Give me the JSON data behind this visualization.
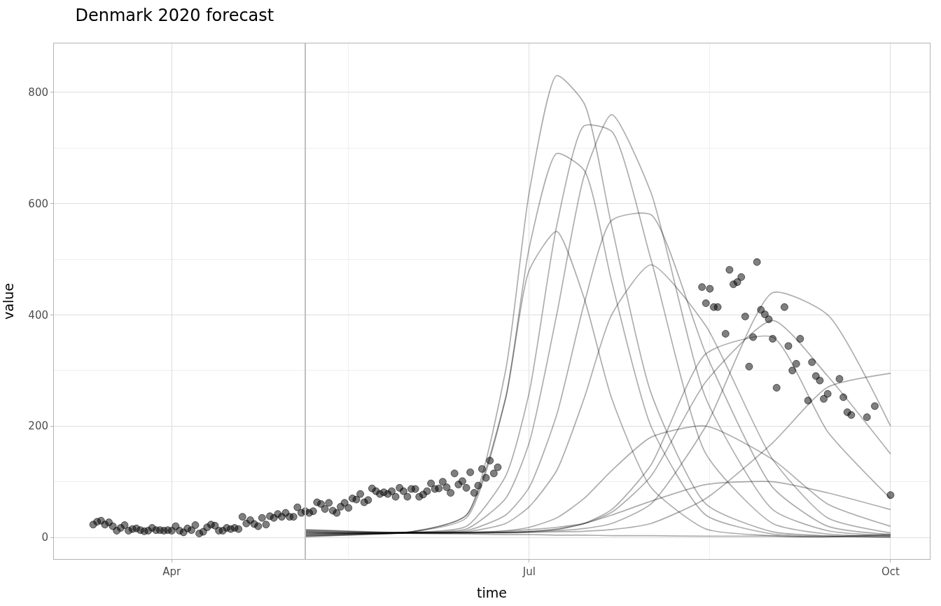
{
  "chart_data": {
    "type": "line",
    "title": "Denmark 2020 forecast",
    "xlabel": "time",
    "ylabel": "value",
    "xlim": [
      "2020-03-02",
      "2020-10-11"
    ],
    "xticks": [
      {
        "value": "2020-04-01",
        "label": "Apr"
      },
      {
        "value": "2020-07-01",
        "label": "Jul"
      },
      {
        "value": "2020-10-01",
        "label": "Oct"
      }
    ],
    "ylim": [
      -39,
      888
    ],
    "yticks": [
      0,
      200,
      400,
      600,
      800
    ],
    "grid": true,
    "legend": false,
    "ref_lines": [
      {
        "axis": "x",
        "value": "2020-05-05",
        "color": "#bfbfbf"
      }
    ],
    "series": [
      {
        "type": "scatter",
        "marker": "circle",
        "color": "#000000",
        "x": [
          "2020-03-12",
          "2020-03-13",
          "2020-03-14",
          "2020-03-15",
          "2020-03-16",
          "2020-03-17",
          "2020-03-18",
          "2020-03-19",
          "2020-03-20",
          "2020-03-21",
          "2020-03-22",
          "2020-03-23",
          "2020-03-24",
          "2020-03-25",
          "2020-03-26",
          "2020-03-27",
          "2020-03-28",
          "2020-03-29",
          "2020-03-30",
          "2020-03-31",
          "2020-04-01",
          "2020-04-02",
          "2020-04-03",
          "2020-04-04",
          "2020-04-05",
          "2020-04-06",
          "2020-04-07",
          "2020-04-08",
          "2020-04-09",
          "2020-04-10",
          "2020-04-11",
          "2020-04-12",
          "2020-04-13",
          "2020-04-14",
          "2020-04-15",
          "2020-04-16",
          "2020-04-17",
          "2020-04-18",
          "2020-04-19",
          "2020-04-20",
          "2020-04-21",
          "2020-04-22",
          "2020-04-23",
          "2020-04-24",
          "2020-04-25",
          "2020-04-26",
          "2020-04-27",
          "2020-04-28",
          "2020-04-29",
          "2020-04-30",
          "2020-05-01",
          "2020-05-02",
          "2020-05-03",
          "2020-05-04",
          "2020-05-05",
          "2020-05-06",
          "2020-05-07",
          "2020-05-08",
          "2020-05-09",
          "2020-05-10",
          "2020-05-11",
          "2020-05-12",
          "2020-05-13",
          "2020-05-14",
          "2020-05-15",
          "2020-05-16",
          "2020-05-17",
          "2020-05-18",
          "2020-05-19",
          "2020-05-20",
          "2020-05-21",
          "2020-05-22",
          "2020-05-23",
          "2020-05-24",
          "2020-05-25",
          "2020-05-26",
          "2020-05-27",
          "2020-05-28",
          "2020-05-29",
          "2020-05-30",
          "2020-05-31",
          "2020-06-01",
          "2020-06-02",
          "2020-06-03",
          "2020-06-04",
          "2020-06-05",
          "2020-06-06",
          "2020-06-07",
          "2020-06-08",
          "2020-06-09",
          "2020-06-10",
          "2020-06-11",
          "2020-06-12",
          "2020-06-13",
          "2020-06-14",
          "2020-06-15",
          "2020-06-16",
          "2020-06-17",
          "2020-06-18",
          "2020-06-19",
          "2020-06-20",
          "2020-06-21",
          "2020-06-22",
          "2020-06-23",
          "2020-08-14",
          "2020-08-15",
          "2020-08-16",
          "2020-08-17",
          "2020-08-18",
          "2020-08-20",
          "2020-08-21",
          "2020-08-22",
          "2020-08-23",
          "2020-08-24",
          "2020-08-25",
          "2020-08-26",
          "2020-08-27",
          "2020-08-28",
          "2020-08-29",
          "2020-08-30",
          "2020-08-31",
          "2020-09-01",
          "2020-09-02",
          "2020-09-04",
          "2020-09-05",
          "2020-09-06",
          "2020-09-07",
          "2020-09-08",
          "2020-09-10",
          "2020-09-11",
          "2020-09-12",
          "2020-09-13",
          "2020-09-14",
          "2020-09-15",
          "2020-09-18",
          "2020-09-19",
          "2020-09-20",
          "2020-09-21",
          "2020-09-25",
          "2020-09-27",
          "2020-10-01"
        ],
        "values": [
          23,
          28,
          30,
          23,
          27,
          20,
          12,
          17,
          22,
          12,
          15,
          16,
          13,
          11,
          12,
          17,
          13,
          13,
          12,
          13,
          12,
          20,
          12,
          9,
          16,
          13,
          22,
          7,
          10,
          18,
          23,
          21,
          12,
          12,
          17,
          15,
          17,
          15,
          37,
          25,
          31,
          24,
          20,
          35,
          23,
          38,
          35,
          42,
          37,
          44,
          37,
          37,
          54,
          44,
          47,
          44,
          47,
          63,
          60,
          51,
          62,
          48,
          44,
          55,
          62,
          53,
          70,
          68,
          78,
          63,
          67,
          88,
          83,
          78,
          81,
          78,
          83,
          73,
          89,
          83,
          73,
          87,
          87,
          73,
          77,
          83,
          97,
          87,
          88,
          100,
          90,
          80,
          115,
          95,
          101,
          89,
          117,
          80,
          93,
          123,
          107,
          138,
          115,
          126,
          450,
          421,
          447,
          414,
          414,
          366,
          481,
          455,
          459,
          468,
          397,
          307,
          360,
          495,
          409,
          401,
          392,
          357,
          269,
          414,
          344,
          300,
          312,
          357,
          246,
          315,
          290,
          282,
          249,
          258,
          285,
          252,
          225,
          220,
          216,
          236,
          76
        ]
      },
      {
        "color": "#000000",
        "x": [
          "2020-05-05",
          "2020-06-01",
          "2020-06-15",
          "2020-06-25",
          "2020-07-01",
          "2020-07-08",
          "2020-07-15",
          "2020-07-22",
          "2020-08-01",
          "2020-08-15",
          "2020-09-01",
          "2020-09-15",
          "2020-10-01"
        ],
        "values": [
          9,
          10,
          40,
          300,
          620,
          830,
          780,
          560,
          260,
          60,
          10,
          3,
          1
        ]
      },
      {
        "color": "#000000",
        "x": [
          "2020-05-05",
          "2020-06-01",
          "2020-06-15",
          "2020-06-25",
          "2020-07-01",
          "2020-07-08",
          "2020-07-15",
          "2020-07-22",
          "2020-08-01",
          "2020-08-15",
          "2020-09-01",
          "2020-09-15",
          "2020-10-01"
        ],
        "values": [
          8,
          9,
          20,
          110,
          260,
          560,
          740,
          730,
          500,
          150,
          25,
          6,
          2
        ]
      },
      {
        "color": "#000000",
        "x": [
          "2020-05-05",
          "2020-06-01",
          "2020-06-15",
          "2020-06-25",
          "2020-07-01",
          "2020-07-08",
          "2020-07-15",
          "2020-07-22",
          "2020-08-01",
          "2020-08-15",
          "2020-09-01",
          "2020-09-15",
          "2020-10-01"
        ],
        "values": [
          7,
          9,
          15,
          70,
          170,
          400,
          650,
          760,
          620,
          250,
          50,
          12,
          3
        ]
      },
      {
        "color": "#000000",
        "x": [
          "2020-05-05",
          "2020-06-01",
          "2020-06-15",
          "2020-06-25",
          "2020-07-01",
          "2020-07-08",
          "2020-07-15",
          "2020-07-22",
          "2020-08-01",
          "2020-08-15",
          "2020-09-01",
          "2020-09-15",
          "2020-10-01"
        ],
        "values": [
          10,
          10,
          35,
          250,
          520,
          690,
          660,
          460,
          200,
          40,
          6,
          2,
          0
        ]
      },
      {
        "color": "#000000",
        "x": [
          "2020-05-05",
          "2020-06-01",
          "2020-06-15",
          "2020-06-25",
          "2020-07-01",
          "2020-07-08",
          "2020-07-15",
          "2020-07-22",
          "2020-08-01",
          "2020-08-15",
          "2020-09-01",
          "2020-09-15",
          "2020-10-01"
        ],
        "values": [
          6,
          9,
          12,
          40,
          90,
          220,
          420,
          570,
          580,
          330,
          90,
          20,
          5
        ]
      },
      {
        "color": "#000000",
        "x": [
          "2020-05-05",
          "2020-06-01",
          "2020-06-15",
          "2020-06-25",
          "2020-07-01",
          "2020-07-08",
          "2020-07-15",
          "2020-07-22",
          "2020-08-01",
          "2020-08-15",
          "2020-09-01",
          "2020-09-15",
          "2020-10-01"
        ],
        "values": [
          5,
          8,
          8,
          9,
          10,
          12,
          16,
          25,
          60,
          200,
          440,
          400,
          200
        ]
      },
      {
        "color": "#000000",
        "x": [
          "2020-05-05",
          "2020-06-01",
          "2020-06-15",
          "2020-06-25",
          "2020-07-01",
          "2020-07-08",
          "2020-07-15",
          "2020-07-22",
          "2020-08-01",
          "2020-08-15",
          "2020-09-01",
          "2020-09-15",
          "2020-10-01"
        ],
        "values": [
          4,
          8,
          8,
          9,
          10,
          14,
          25,
          50,
          130,
          330,
          360,
          190,
          70
        ]
      },
      {
        "color": "#000000",
        "x": [
          "2020-05-05",
          "2020-06-01",
          "2020-06-15",
          "2020-06-25",
          "2020-07-01",
          "2020-07-08",
          "2020-07-15",
          "2020-07-22",
          "2020-08-01",
          "2020-08-15",
          "2020-09-01",
          "2020-09-15",
          "2020-10-01"
        ],
        "values": [
          3,
          8,
          8,
          8,
          9,
          10,
          11,
          14,
          25,
          70,
          170,
          270,
          295
        ]
      },
      {
        "color": "#000000",
        "x": [
          "2020-05-05",
          "2020-06-01",
          "2020-06-15",
          "2020-06-25",
          "2020-07-01",
          "2020-07-08",
          "2020-07-15",
          "2020-07-22",
          "2020-08-01",
          "2020-08-15",
          "2020-09-01",
          "2020-09-15",
          "2020-10-01"
        ],
        "values": [
          11,
          10,
          40,
          250,
          480,
          550,
          430,
          250,
          90,
          15,
          3,
          1,
          4
        ]
      },
      {
        "color": "#000000",
        "x": [
          "2020-05-05",
          "2020-06-01",
          "2020-06-15",
          "2020-06-25",
          "2020-07-01",
          "2020-07-08",
          "2020-07-15",
          "2020-07-22",
          "2020-08-01",
          "2020-08-15",
          "2020-09-01",
          "2020-09-15",
          "2020-10-01"
        ],
        "values": [
          2,
          8,
          10,
          25,
          55,
          120,
          250,
          400,
          490,
          380,
          140,
          35,
          8
        ]
      },
      {
        "color": "#000000",
        "x": [
          "2020-05-05",
          "2020-06-01",
          "2020-06-15",
          "2020-06-25",
          "2020-07-01",
          "2020-07-08",
          "2020-07-15",
          "2020-07-22",
          "2020-08-01",
          "2020-08-15",
          "2020-09-01",
          "2020-09-15",
          "2020-10-01"
        ],
        "values": [
          12,
          8,
          9,
          12,
          18,
          35,
          70,
          120,
          180,
          200,
          140,
          60,
          20
        ]
      },
      {
        "color": "#000000",
        "x": [
          "2020-05-05",
          "2020-06-01",
          "2020-06-15",
          "2020-06-25",
          "2020-07-01",
          "2020-07-08",
          "2020-07-15",
          "2020-07-22",
          "2020-08-01",
          "2020-08-15",
          "2020-09-01",
          "2020-09-15",
          "2020-10-01"
        ],
        "values": [
          1,
          8,
          9,
          11,
          14,
          18,
          25,
          40,
          65,
          95,
          100,
          80,
          50
        ]
      },
      {
        "color": "#000000",
        "x": [
          "2020-05-05",
          "2020-06-01",
          "2020-06-15",
          "2020-06-25",
          "2020-07-01",
          "2020-07-08",
          "2020-07-15",
          "2020-07-22",
          "2020-08-01",
          "2020-08-15",
          "2020-09-01",
          "2020-09-15",
          "2020-10-01"
        ],
        "values": [
          13,
          7,
          6,
          5,
          5,
          4,
          4,
          3,
          3,
          2,
          2,
          1,
          6
        ]
      },
      {
        "color": "#000000",
        "x": [
          "2020-05-05",
          "2020-06-01",
          "2020-06-15",
          "2020-06-25",
          "2020-07-01",
          "2020-07-08",
          "2020-07-15",
          "2020-07-22",
          "2020-08-01",
          "2020-08-15",
          "2020-09-01",
          "2020-09-15",
          "2020-10-01"
        ],
        "values": [
          14,
          8,
          8,
          9,
          11,
          15,
          25,
          45,
          110,
          280,
          390,
          290,
          150
        ]
      }
    ]
  }
}
